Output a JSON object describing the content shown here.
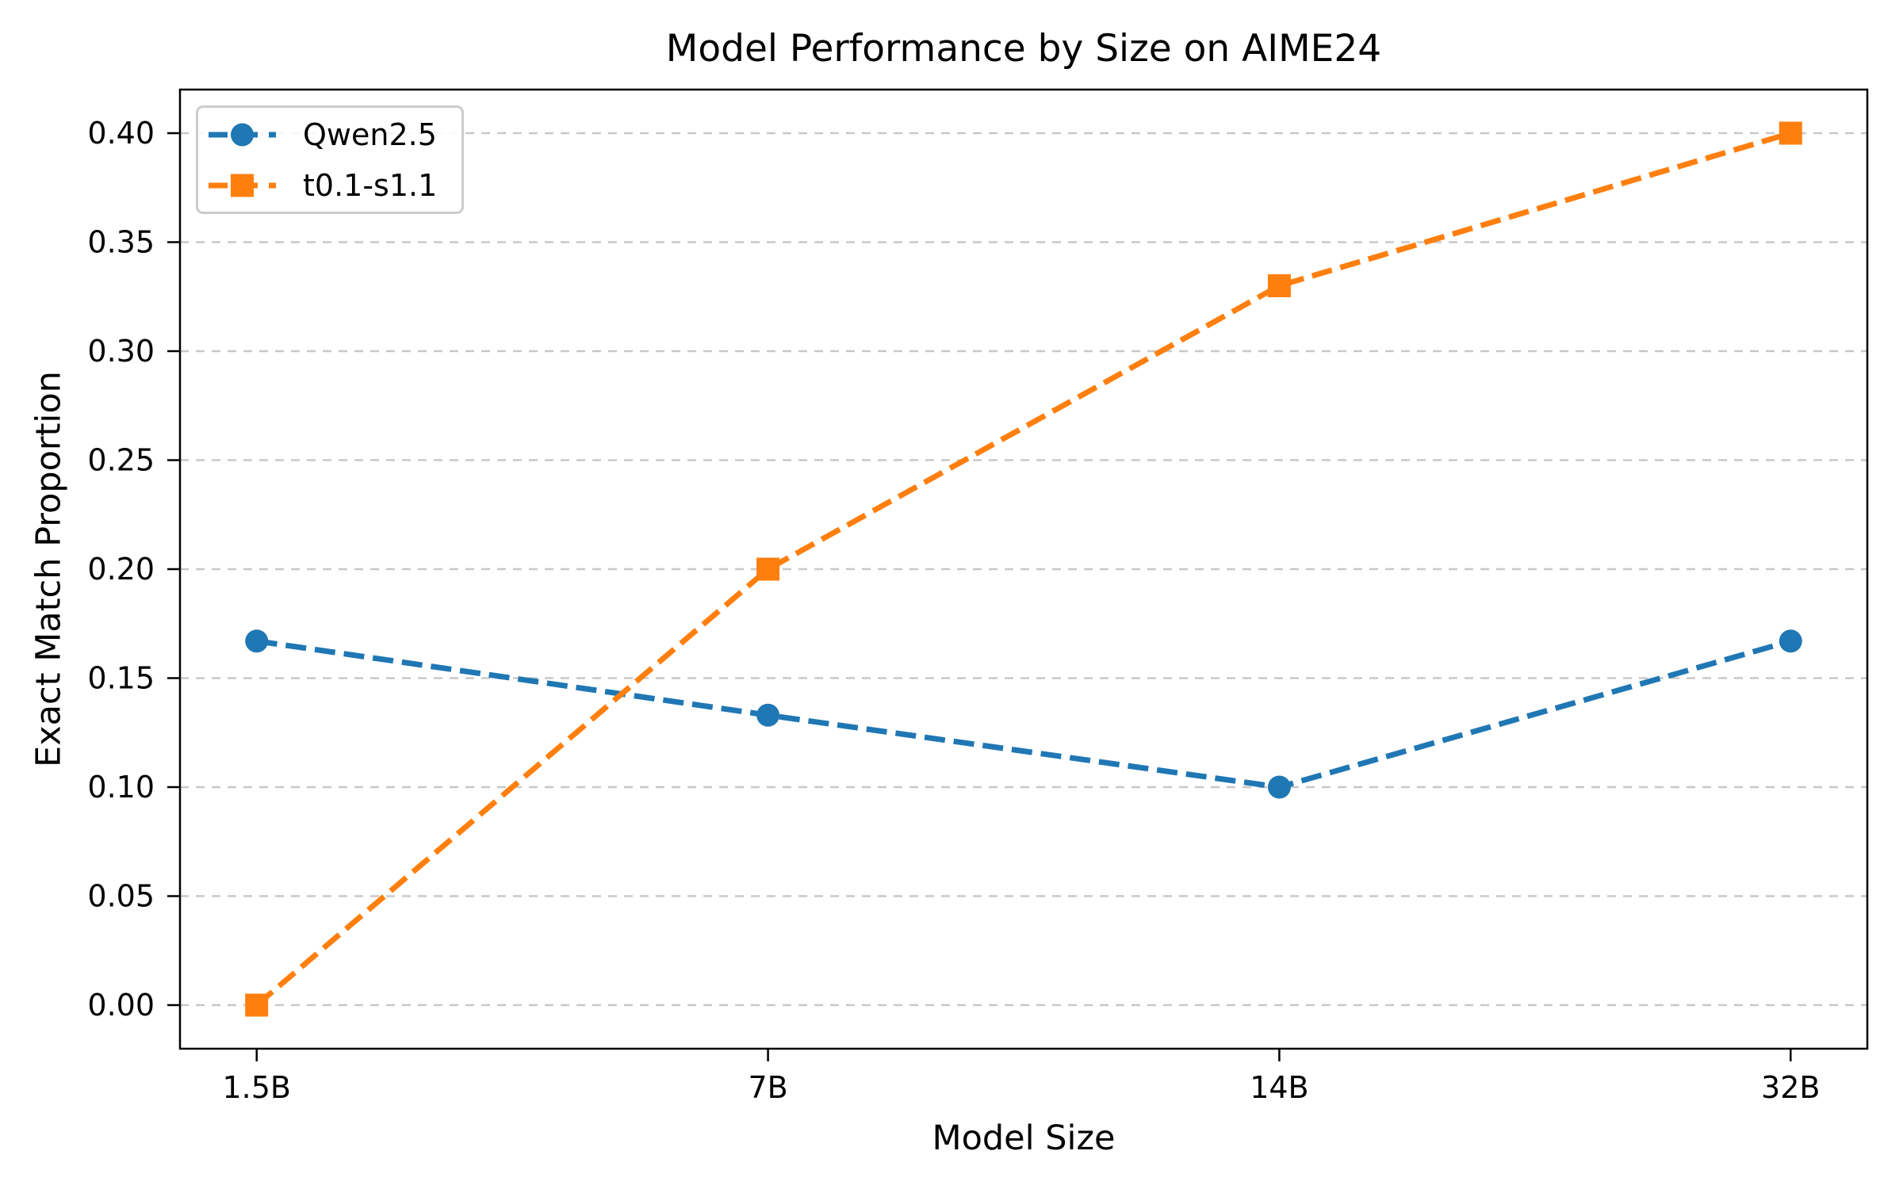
{
  "chart_data": {
    "type": "line",
    "title": "Model Performance by Size on AIME24",
    "xlabel": "Model Size",
    "ylabel": "Exact Match Proportion",
    "categories": [
      "1.5B",
      "7B",
      "14B",
      "32B"
    ],
    "series": [
      {
        "name": "Qwen2.5",
        "color": "#1f77b4",
        "marker": "circle",
        "linestyle": "dashed",
        "values": [
          0.167,
          0.133,
          0.1,
          0.167
        ]
      },
      {
        "name": "t0.1-s1.1",
        "color": "#ff7f0e",
        "marker": "square",
        "linestyle": "dashed",
        "values": [
          0.0,
          0.2,
          0.33,
          0.4
        ]
      }
    ],
    "yticks": [
      0.0,
      0.05,
      0.1,
      0.15,
      0.2,
      0.25,
      0.3,
      0.35,
      0.4
    ],
    "ytick_labels": [
      "0.00",
      "0.05",
      "0.10",
      "0.15",
      "0.20",
      "0.25",
      "0.30",
      "0.35",
      "0.40"
    ],
    "ylim": [
      -0.02,
      0.42
    ],
    "xlim": [
      -0.15,
      3.15
    ],
    "grid": true,
    "grid_color": "#c8c8c8",
    "axis_color": "#000000",
    "legend_position": "upper left"
  }
}
